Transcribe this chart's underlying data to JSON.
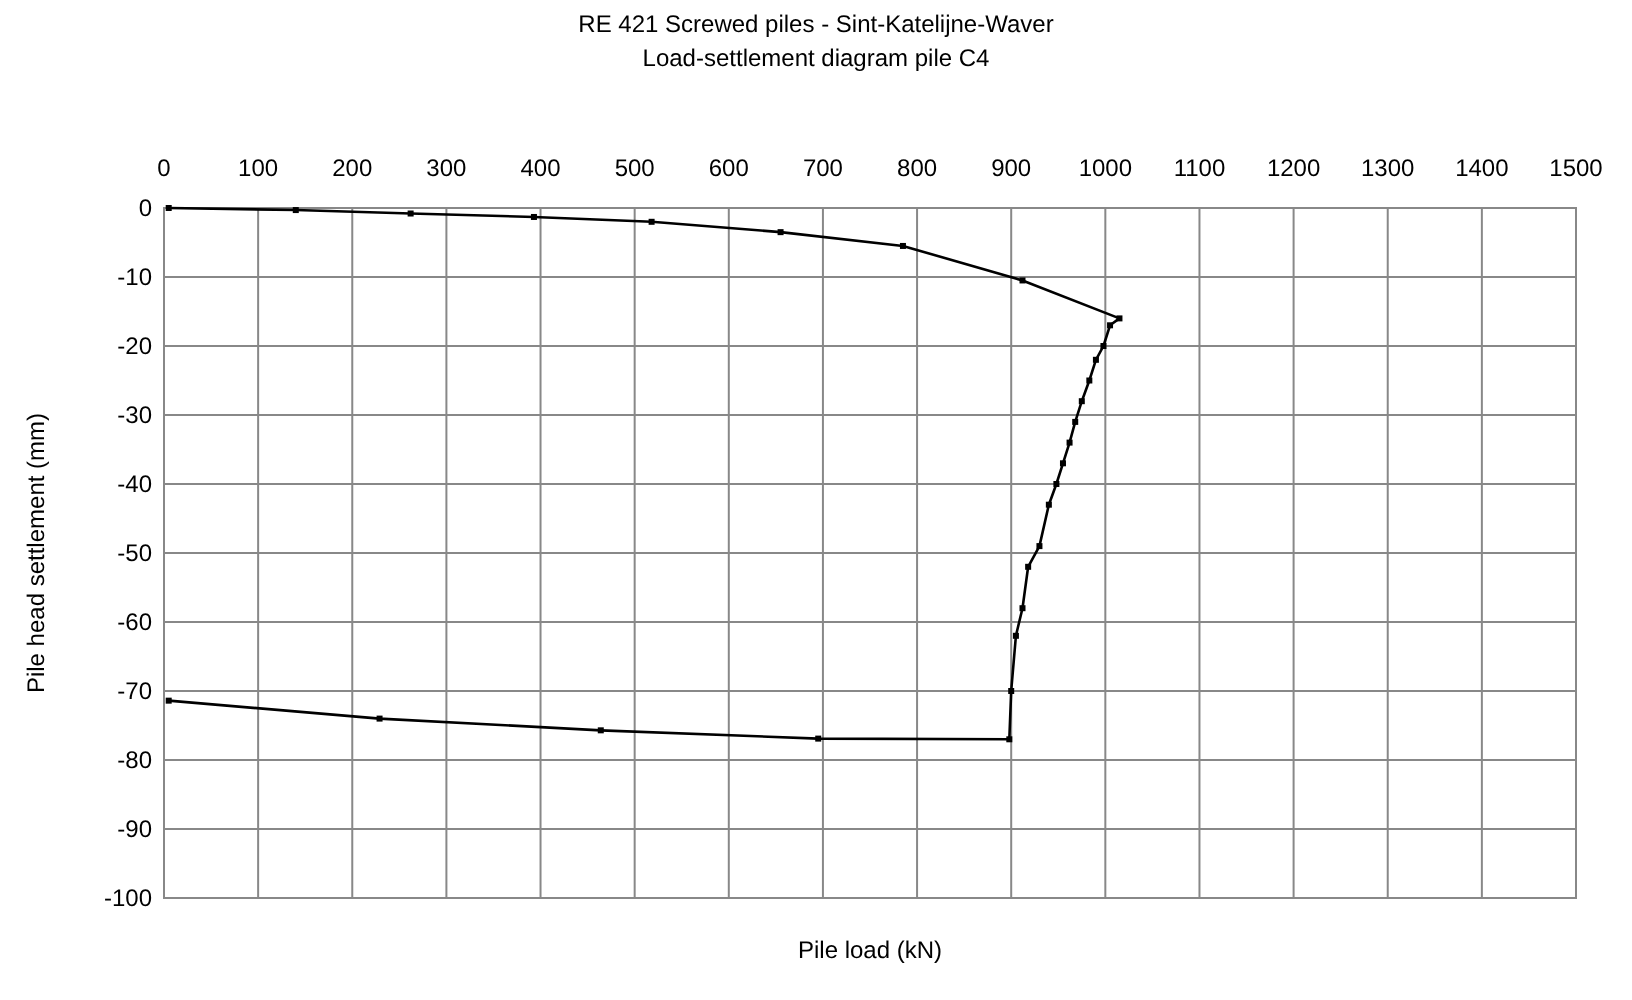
{
  "chart_data": {
    "type": "line",
    "title": "RE 421 Screwed piles - Sint-Katelijne-Waver",
    "subtitle": "Load-settlement diagram pile C4",
    "xlabel": "Pile load (kN)",
    "ylabel": "Pile head settlement (mm)",
    "x": [
      5,
      140,
      262,
      393,
      518,
      655,
      785,
      912,
      1015,
      1005,
      998,
      990,
      983,
      975,
      968,
      962,
      955,
      948,
      940,
      930,
      918,
      912,
      905,
      900,
      898,
      695,
      464,
      229,
      5
    ],
    "series": [
      {
        "color": "#000000",
        "values": [
          0,
          -0.3,
          -0.8,
          -1.3,
          -2,
          -3.5,
          -5.5,
          -10.5,
          -16,
          -17,
          -20,
          -22,
          -25,
          -28,
          -31,
          -34,
          -37,
          -40,
          -43,
          -49,
          -52,
          -58,
          -62,
          -70,
          -77,
          -76.9,
          -75.7,
          -74,
          -71.4
        ]
      }
    ],
    "xlim": [
      0,
      1500
    ],
    "xticks": [
      0,
      100,
      200,
      300,
      400,
      500,
      600,
      700,
      800,
      900,
      1000,
      1100,
      1200,
      1300,
      1400,
      1500
    ],
    "ylim": [
      -100,
      0
    ],
    "yticks": [
      0,
      -10,
      -20,
      -30,
      -40,
      -50,
      -60,
      -70,
      -80,
      -90,
      -100
    ],
    "grid": true,
    "marker": "square",
    "line_style": "solid"
  }
}
